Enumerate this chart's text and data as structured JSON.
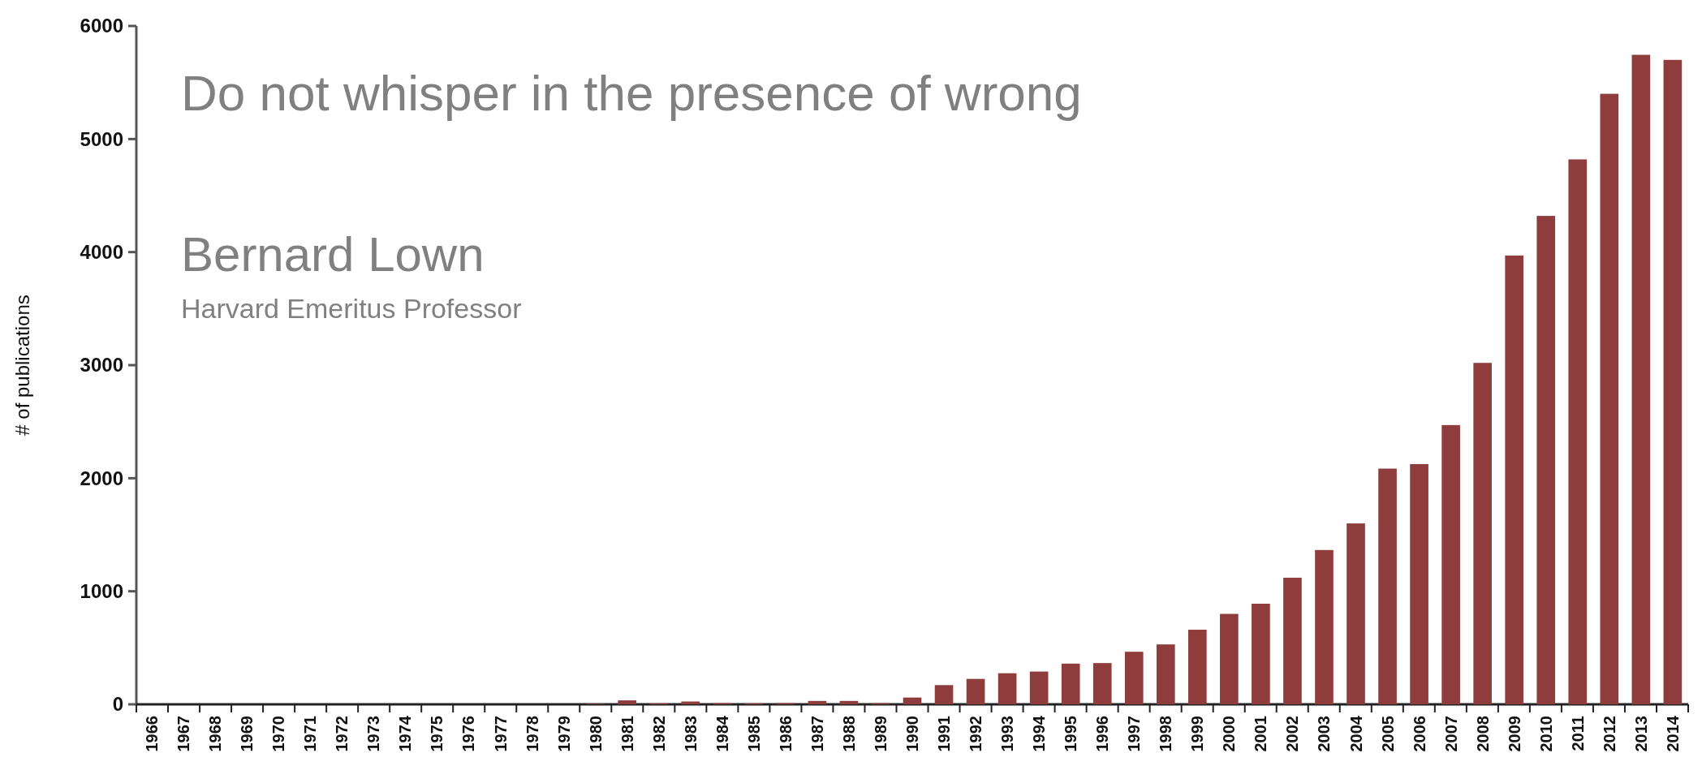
{
  "chart_data": {
    "type": "bar",
    "title": "Do not whisper in the presence of wrong",
    "annotations": [
      "Bernard Lown",
      "Harvard Emeritus Professor"
    ],
    "ylabel": "# of publications",
    "categories": [
      "1966",
      "1967",
      "1968",
      "1969",
      "1970",
      "1971",
      "1972",
      "1973",
      "1974",
      "1975",
      "1976",
      "1977",
      "1978",
      "1979",
      "1980",
      "1981",
      "1982",
      "1983",
      "1984",
      "1985",
      "1986",
      "1987",
      "1988",
      "1989",
      "1990",
      "1991",
      "1992",
      "1993",
      "1994",
      "1995",
      "1996",
      "1997",
      "1998",
      "1999",
      "2000",
      "2001",
      "2002",
      "2003",
      "2004",
      "2005",
      "2006",
      "2007",
      "2008",
      "2009",
      "2010",
      "2011",
      "2012",
      "2013",
      "2014"
    ],
    "values": [
      0,
      0,
      0,
      0,
      0,
      0,
      0,
      0,
      0,
      0,
      0,
      0,
      0,
      0,
      5,
      35,
      8,
      25,
      10,
      8,
      10,
      30,
      30,
      10,
      60,
      170,
      225,
      275,
      290,
      360,
      365,
      465,
      530,
      660,
      800,
      890,
      1120,
      1365,
      1600,
      2085,
      2125,
      2470,
      3020,
      3970,
      4320,
      4820,
      5400,
      5745,
      5700
    ],
    "color": "#8e3c3c",
    "ylim": [
      0,
      6000
    ],
    "yticks": [
      0,
      1000,
      2000,
      3000,
      4000,
      5000,
      6000
    ],
    "grid": false
  }
}
